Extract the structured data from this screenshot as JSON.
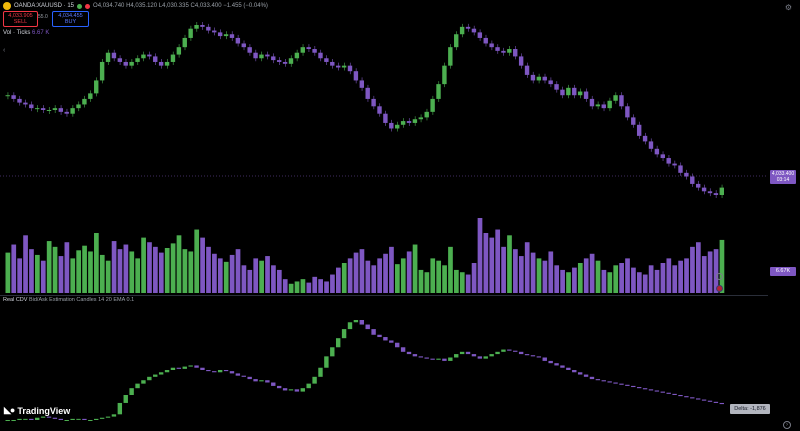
{
  "header": {
    "symbol": "OANDA:XAUUSD · 15",
    "ohlc": {
      "o_label": "O",
      "open": "4,034.740",
      "h_label": "H",
      "high": "4,035.120",
      "l_label": "L",
      "low": "4,030.335",
      "c_label": "C",
      "close": "4,033.400",
      "change": "−1.455 (−0.04%)"
    },
    "sell": {
      "price": "4,033.905",
      "label": "SELL"
    },
    "buy": {
      "price": "4,034.455",
      "label": "BUY"
    },
    "spread": "55.0",
    "status_colors": [
      "#4caf50",
      "#f23645"
    ]
  },
  "volume_label": {
    "name": "Vol · Ticks",
    "value": "6.67 K"
  },
  "cdv_label": {
    "name": "Real CDV",
    "params": "Bid/Ask Estimation Candles 14 20 EMA 0.1"
  },
  "tags": {
    "price": "4,033.400",
    "countdown": "03:14",
    "volume": "6.67K",
    "delta": "Delta: -1,876"
  },
  "logo": {
    "text": "TradingView"
  },
  "icons": {
    "settings": "gear-icon",
    "scroll": "scroll-icon",
    "collapse": "chevron-left-icon"
  },
  "colors": {
    "up": "#4caf50",
    "down": "#7e57c2",
    "bg": "#000000"
  },
  "chart_data": [
    {
      "type": "candlestick",
      "title": "OANDA:XAUUSD · 15",
      "series": [
        {
          "name": "Price",
          "values": [
            62,
            60,
            58,
            57,
            55,
            55,
            54,
            54,
            55,
            53,
            52,
            55,
            57,
            60,
            63,
            70,
            80,
            85,
            82,
            80,
            78,
            80,
            82,
            84,
            83,
            80,
            78,
            80,
            84,
            88,
            93,
            98,
            100,
            99,
            97,
            96,
            94,
            95,
            93,
            90,
            88,
            85,
            82,
            84,
            83,
            81,
            80,
            79,
            82,
            85,
            88,
            87,
            85,
            82,
            80,
            78,
            77,
            78,
            75,
            70,
            66,
            60,
            56,
            52,
            47,
            44,
            46,
            48,
            47,
            49,
            50,
            53,
            60,
            68,
            78,
            88,
            95,
            99,
            98,
            96,
            93,
            90,
            88,
            86,
            85,
            87,
            83,
            78,
            73,
            70,
            72,
            70,
            68,
            65,
            62,
            66,
            62,
            64,
            60,
            56,
            57,
            55,
            59,
            62,
            56,
            50,
            46,
            40,
            37,
            33,
            30,
            28,
            25,
            24,
            20,
            18,
            14,
            12,
            10,
            9,
            8,
            12
          ]
        }
      ],
      "ylabel": "",
      "xlabel": ""
    },
    {
      "type": "bar",
      "title": "Vol · Ticks",
      "series": [
        {
          "name": "Volume",
          "values": [
            35,
            42,
            30,
            50,
            38,
            33,
            28,
            45,
            40,
            32,
            44,
            30,
            37,
            41,
            36,
            52,
            33,
            28,
            45,
            38,
            42,
            36,
            30,
            48,
            44,
            40,
            35,
            39,
            43,
            50,
            38,
            36,
            55,
            48,
            40,
            34,
            30,
            27,
            33,
            38,
            24,
            20,
            30,
            28,
            32,
            24,
            20,
            12,
            8,
            10,
            12,
            9,
            14,
            12,
            10,
            16,
            22,
            26,
            30,
            35,
            38,
            28,
            24,
            30,
            34,
            40,
            25,
            30,
            36,
            42,
            20,
            18,
            30,
            28,
            24,
            40,
            20,
            18,
            16,
            26,
            65,
            52,
            48,
            55,
            40,
            50,
            38,
            32,
            44,
            35,
            30,
            28,
            36,
            24,
            20,
            18,
            22,
            26,
            30,
            34,
            28,
            20,
            18,
            24,
            26,
            30,
            22,
            18,
            16,
            24,
            20,
            26,
            30,
            24,
            28,
            30,
            40,
            44,
            32,
            36,
            38,
            46
          ]
        }
      ]
    },
    {
      "type": "candlestick",
      "title": "Real CDV",
      "series": [
        {
          "name": "CDV",
          "values": [
            0,
            0,
            1,
            1,
            0,
            2,
            3,
            2,
            1,
            0,
            0,
            1,
            1,
            0,
            0,
            1,
            2,
            3,
            5,
            15,
            22,
            28,
            32,
            35,
            38,
            40,
            42,
            44,
            46,
            45,
            47,
            48,
            46,
            44,
            43,
            42,
            44,
            43,
            41,
            39,
            38,
            36,
            34,
            35,
            33,
            30,
            28,
            26,
            27,
            25,
            28,
            32,
            38,
            46,
            56,
            64,
            72,
            80,
            86,
            88,
            84,
            80,
            75,
            73,
            70,
            68,
            64,
            60,
            58,
            56,
            55,
            54,
            53,
            54,
            52,
            55,
            58,
            60,
            58,
            56,
            54,
            56,
            58,
            60,
            62,
            61,
            60,
            58,
            57,
            56,
            55,
            52,
            50,
            48,
            46,
            44,
            42,
            40,
            38,
            36,
            35,
            34,
            33,
            32,
            31,
            30,
            29,
            28,
            27,
            26,
            25,
            24,
            23,
            22,
            21,
            20,
            19,
            18,
            17,
            16,
            15,
            14
          ]
        }
      ]
    }
  ]
}
